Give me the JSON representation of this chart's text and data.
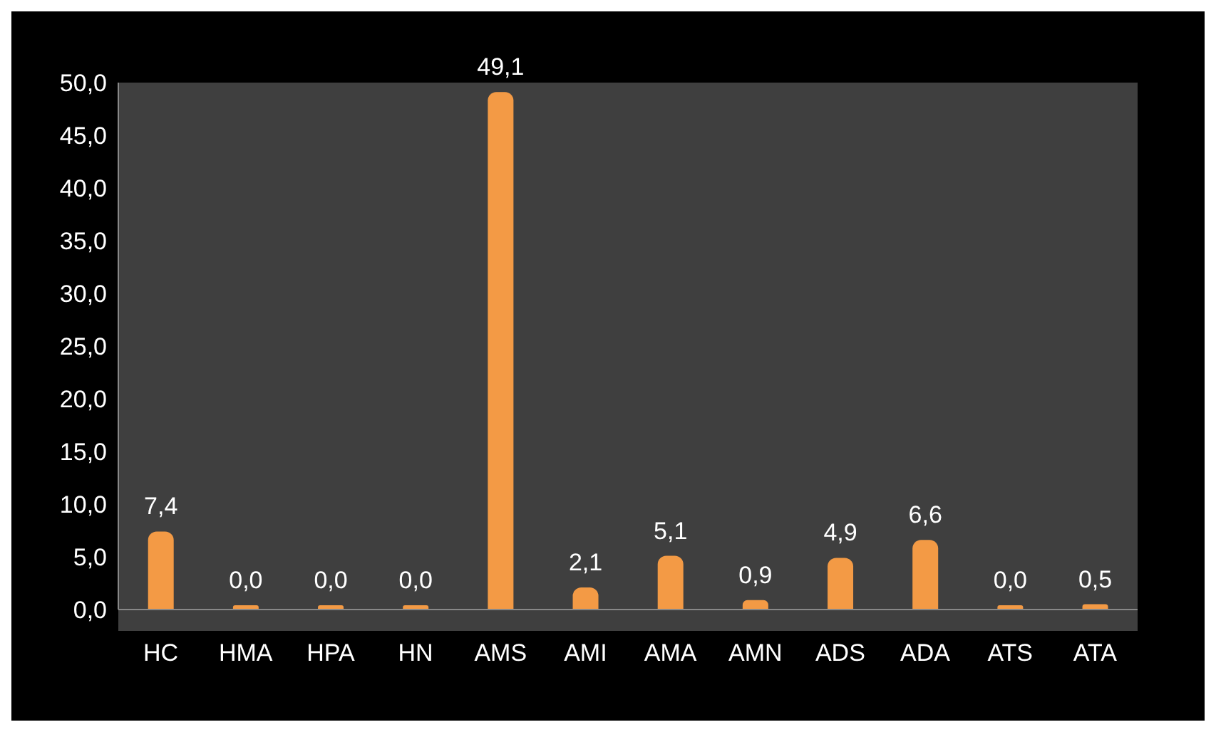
{
  "chart_data": {
    "type": "bar",
    "categories": [
      "HC",
      "HMA",
      "HPA",
      "HN",
      "AMS",
      "AMI",
      "AMA",
      "AMN",
      "ADS",
      "ADA",
      "ATS",
      "ATA"
    ],
    "values": [
      7.4,
      0.0,
      0.0,
      0.0,
      49.1,
      2.1,
      5.1,
      0.9,
      4.9,
      6.6,
      0.0,
      0.5
    ],
    "value_labels": [
      "7,4",
      "0,0",
      "0,0",
      "0,0",
      "49,1",
      "2,1",
      "5,1",
      "0,9",
      "4,9",
      "6,6",
      "0,0",
      "0,5"
    ],
    "color": "#f39a45",
    "ylim": [
      0,
      50
    ],
    "yticks": [
      {
        "value": 0,
        "label": "0,0"
      },
      {
        "value": 5,
        "label": "5,0"
      },
      {
        "value": 10,
        "label": "10,0"
      },
      {
        "value": 15,
        "label": "15,0"
      },
      {
        "value": 20,
        "label": "20,0"
      },
      {
        "value": 25,
        "label": "25,0"
      },
      {
        "value": 30,
        "label": "30,0"
      },
      {
        "value": 35,
        "label": "35,0"
      },
      {
        "value": 40,
        "label": "40,0"
      },
      {
        "value": 45,
        "label": "45,0"
      },
      {
        "value": 50,
        "label": "50,0"
      }
    ],
    "grid": false,
    "legend": false
  }
}
